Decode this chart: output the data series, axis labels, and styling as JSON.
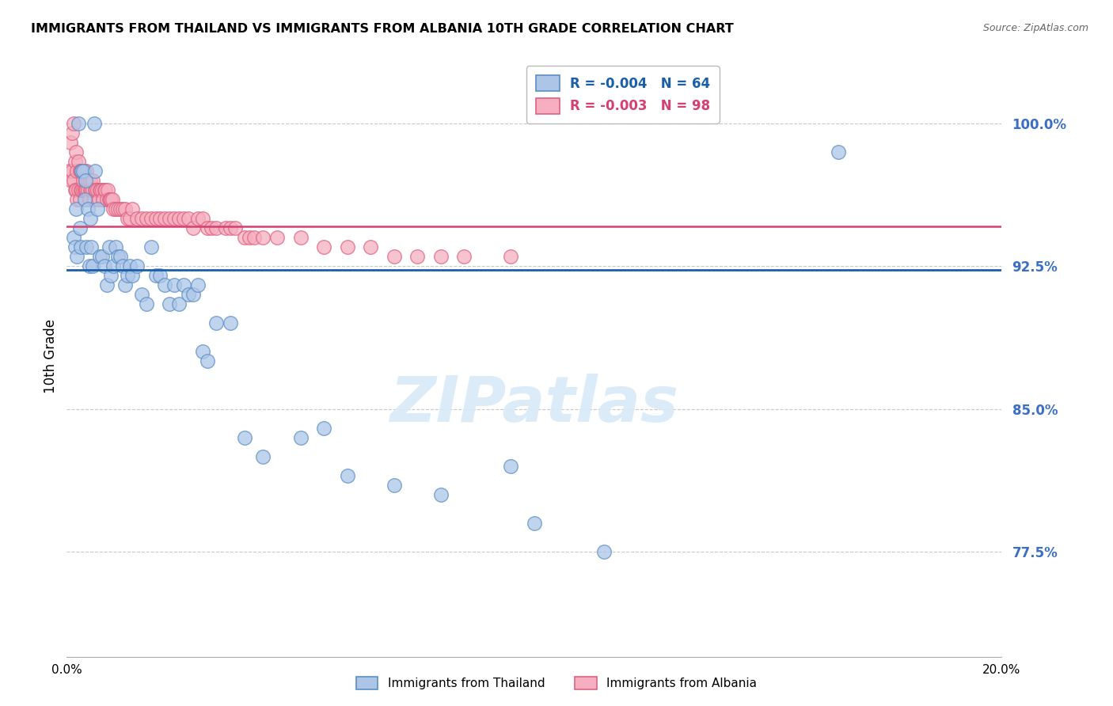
{
  "title": "IMMIGRANTS FROM THAILAND VS IMMIGRANTS FROM ALBANIA 10TH GRADE CORRELATION CHART",
  "source": "Source: ZipAtlas.com",
  "ylabel": "10th Grade",
  "ytick_vals": [
    77.5,
    85.0,
    92.5,
    100.0
  ],
  "ytick_labels": [
    "77.5%",
    "85.0%",
    "92.5%",
    "100.0%"
  ],
  "xlim": [
    0.0,
    20.0
  ],
  "ylim": [
    72.0,
    103.5
  ],
  "legend_R_blue": "-0.004",
  "legend_N_blue": "64",
  "legend_R_pink": "-0.003",
  "legend_N_pink": "98",
  "blue_mean_y": 92.3,
  "pink_mean_y": 94.6,
  "blue_face_color": "#adc6e8",
  "pink_face_color": "#f5afc0",
  "blue_edge_color": "#5b8ec4",
  "pink_edge_color": "#e06080",
  "blue_line_color": "#1a5fa8",
  "pink_line_color": "#d44070",
  "watermark_color": "#d8eaf8",
  "watermark": "ZIPatlas",
  "thailand_x": [
    0.15,
    0.18,
    0.2,
    0.22,
    0.25,
    0.28,
    0.3,
    0.32,
    0.35,
    0.38,
    0.4,
    0.42,
    0.45,
    0.48,
    0.5,
    0.52,
    0.55,
    0.58,
    0.6,
    0.65,
    0.7,
    0.75,
    0.8,
    0.85,
    0.9,
    0.95,
    1.0,
    1.05,
    1.1,
    1.15,
    1.2,
    1.25,
    1.3,
    1.35,
    1.4,
    1.5,
    1.6,
    1.7,
    1.8,
    1.9,
    2.0,
    2.1,
    2.2,
    2.3,
    2.4,
    2.5,
    2.6,
    2.7,
    2.8,
    2.9,
    3.0,
    3.2,
    3.5,
    3.8,
    4.2,
    5.0,
    5.5,
    6.0,
    7.0,
    8.0,
    9.5,
    10.0,
    11.5,
    16.5
  ],
  "thailand_y": [
    94.0,
    93.5,
    95.5,
    93.0,
    100.0,
    94.5,
    93.5,
    97.5,
    97.5,
    96.0,
    97.0,
    93.5,
    95.5,
    92.5,
    95.0,
    93.5,
    92.5,
    100.0,
    97.5,
    95.5,
    93.0,
    93.0,
    92.5,
    91.5,
    93.5,
    92.0,
    92.5,
    93.5,
    93.0,
    93.0,
    92.5,
    91.5,
    92.0,
    92.5,
    92.0,
    92.5,
    91.0,
    90.5,
    93.5,
    92.0,
    92.0,
    91.5,
    90.5,
    91.5,
    90.5,
    91.5,
    91.0,
    91.0,
    91.5,
    88.0,
    87.5,
    89.5,
    89.5,
    83.5,
    82.5,
    83.5,
    84.0,
    81.5,
    81.0,
    80.5,
    82.0,
    79.0,
    77.5,
    98.5
  ],
  "albania_x": [
    0.05,
    0.08,
    0.1,
    0.12,
    0.12,
    0.15,
    0.15,
    0.18,
    0.18,
    0.2,
    0.2,
    0.22,
    0.22,
    0.25,
    0.25,
    0.28,
    0.28,
    0.3,
    0.3,
    0.32,
    0.32,
    0.35,
    0.35,
    0.38,
    0.38,
    0.4,
    0.4,
    0.42,
    0.42,
    0.45,
    0.45,
    0.48,
    0.5,
    0.5,
    0.52,
    0.55,
    0.55,
    0.58,
    0.6,
    0.62,
    0.65,
    0.68,
    0.7,
    0.72,
    0.75,
    0.78,
    0.8,
    0.82,
    0.85,
    0.88,
    0.9,
    0.92,
    0.95,
    0.98,
    1.0,
    1.05,
    1.1,
    1.15,
    1.2,
    1.25,
    1.3,
    1.35,
    1.4,
    1.5,
    1.6,
    1.7,
    1.8,
    1.9,
    2.0,
    2.1,
    2.2,
    2.3,
    2.4,
    2.5,
    2.6,
    2.7,
    2.8,
    2.9,
    3.0,
    3.1,
    3.2,
    3.4,
    3.5,
    3.6,
    3.8,
    3.9,
    4.0,
    4.2,
    4.5,
    5.0,
    5.5,
    6.0,
    6.5,
    7.0,
    7.5,
    8.0,
    8.5,
    9.5
  ],
  "albania_y": [
    97.5,
    99.0,
    97.0,
    97.5,
    99.5,
    97.0,
    100.0,
    96.5,
    98.0,
    96.5,
    98.5,
    96.0,
    97.5,
    96.5,
    98.0,
    96.0,
    97.5,
    96.5,
    97.5,
    96.5,
    97.5,
    96.5,
    97.0,
    96.5,
    97.5,
    96.5,
    97.0,
    96.5,
    97.5,
    96.5,
    97.0,
    96.0,
    96.5,
    97.0,
    96.5,
    96.5,
    97.0,
    96.0,
    96.5,
    96.5,
    96.5,
    96.0,
    96.5,
    96.5,
    96.5,
    96.0,
    96.5,
    96.5,
    96.0,
    96.5,
    96.0,
    96.0,
    96.0,
    96.0,
    95.5,
    95.5,
    95.5,
    95.5,
    95.5,
    95.5,
    95.0,
    95.0,
    95.5,
    95.0,
    95.0,
    95.0,
    95.0,
    95.0,
    95.0,
    95.0,
    95.0,
    95.0,
    95.0,
    95.0,
    95.0,
    94.5,
    95.0,
    95.0,
    94.5,
    94.5,
    94.5,
    94.5,
    94.5,
    94.5,
    94.0,
    94.0,
    94.0,
    94.0,
    94.0,
    94.0,
    93.5,
    93.5,
    93.5,
    93.0,
    93.0,
    93.0,
    93.0,
    93.0
  ]
}
